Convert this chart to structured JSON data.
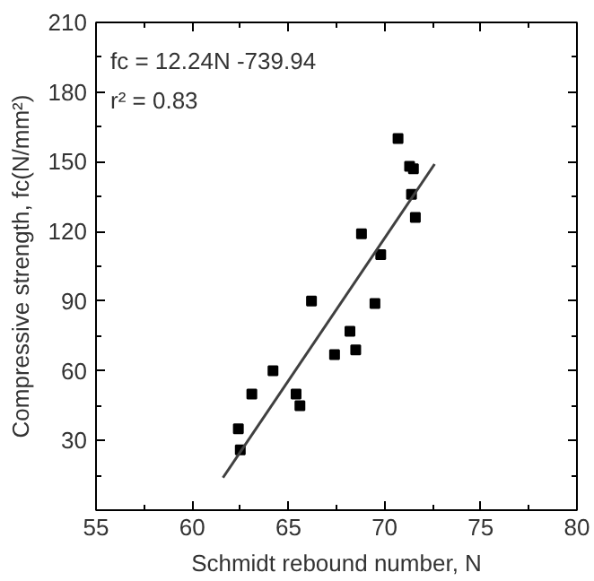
{
  "chart_data": {
    "type": "scatter",
    "xlabel": "Schmidt rebound number, N",
    "ylabel": "Compressive strength, fc(N/mm²)",
    "annotations": [
      "fc = 12.24N -739.94",
      "r² = 0.83"
    ],
    "xlim": [
      55,
      80
    ],
    "xticks": [
      55,
      60,
      65,
      70,
      75,
      80
    ],
    "ylim": [
      0,
      210
    ],
    "yticks": [
      {
        "value": 0,
        "label": null
      },
      30,
      60,
      90,
      120,
      150,
      180,
      210
    ],
    "grid": false,
    "series": [
      {
        "color": "#000000",
        "marker": "square",
        "x": [
          62.4,
          62.5,
          63.1,
          64.2,
          65.4,
          65.6,
          66.2,
          67.4,
          68.2,
          68.5,
          69.5,
          70.7,
          71.3,
          71.5,
          71.4,
          71.6,
          68.8,
          69.8
        ],
        "values": [
          35,
          26,
          50,
          60,
          50,
          45,
          90,
          67,
          77,
          69,
          89,
          160,
          148,
          147,
          136,
          126,
          119,
          110
        ]
      },
      {
        "type": "line",
        "color": "#404040",
        "line_style": "solid",
        "x": [
          61.6,
          72.6
        ],
        "values": [
          14,
          149
        ]
      }
    ]
  }
}
